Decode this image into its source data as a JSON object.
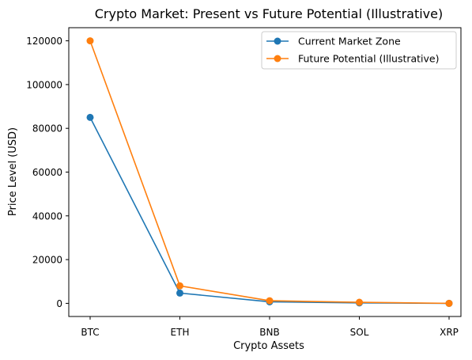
{
  "chart_data": {
    "type": "line",
    "title": "Crypto Market: Present vs Future Potential (Illustrative)",
    "xlabel": "Crypto Assets",
    "ylabel": "Price Level (USD)",
    "categories": [
      "BTC",
      "ETH",
      "BNB",
      "SOL",
      "XRP"
    ],
    "ylim": [
      -6000,
      126000
    ],
    "yticks": [
      0,
      20000,
      40000,
      60000,
      80000,
      100000,
      120000
    ],
    "ytick_labels": [
      "0",
      "20000",
      "40000",
      "60000",
      "80000",
      "100000",
      "120000"
    ],
    "grid": false,
    "legend_position": "top-right",
    "series": [
      {
        "name": "Current Market Zone",
        "color": "#1f77b4",
        "values": [
          85000,
          4700,
          700,
          200,
          2
        ]
      },
      {
        "name": "Future Potential (Illustrative)",
        "color": "#ff7f0e",
        "values": [
          120000,
          8000,
          1200,
          500,
          10
        ]
      }
    ]
  }
}
